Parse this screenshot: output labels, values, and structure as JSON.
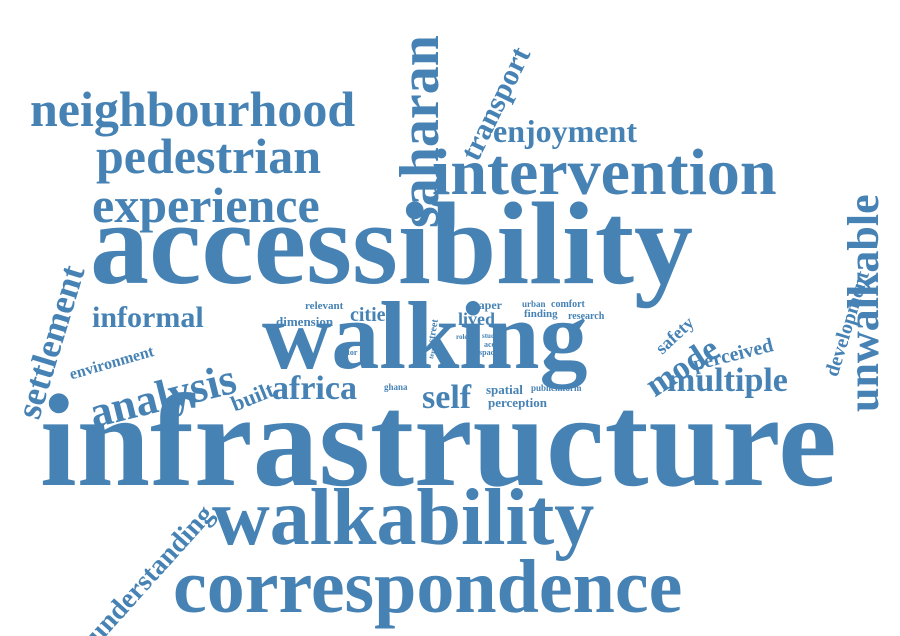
{
  "color": "#4682b4",
  "words": [
    {
      "text": "infrastructure"
    },
    {
      "text": "accessibility"
    },
    {
      "text": "walking"
    },
    {
      "text": "walkability"
    },
    {
      "text": "correspondence"
    },
    {
      "text": "intervention"
    },
    {
      "text": "neighbourhood"
    },
    {
      "text": "pedestrian"
    },
    {
      "text": "experience"
    },
    {
      "text": "saharan"
    },
    {
      "text": "unwalkable"
    },
    {
      "text": "transport"
    },
    {
      "text": "enjoyment"
    },
    {
      "text": "settlement"
    },
    {
      "text": "understanding"
    },
    {
      "text": "analysis"
    },
    {
      "text": "africa"
    },
    {
      "text": "multiple"
    },
    {
      "text": "mode"
    },
    {
      "text": "development"
    },
    {
      "text": "informal"
    },
    {
      "text": "self"
    },
    {
      "text": "built"
    },
    {
      "text": "environment"
    },
    {
      "text": "perceived"
    },
    {
      "text": "safety"
    },
    {
      "text": "cities"
    },
    {
      "text": "lived"
    },
    {
      "text": "dimension"
    },
    {
      "text": "relevant"
    },
    {
      "text": "paper"
    },
    {
      "text": "comfort"
    },
    {
      "text": "urban"
    },
    {
      "text": "finding"
    },
    {
      "text": "research"
    },
    {
      "text": "street"
    },
    {
      "text": "spatial"
    },
    {
      "text": "perception"
    },
    {
      "text": "publicinform"
    },
    {
      "text": "ghana"
    },
    {
      "text": "factor"
    },
    {
      "text": "term"
    },
    {
      "text": "role"
    },
    {
      "text": "study"
    },
    {
      "text": "acc"
    },
    {
      "text": "space"
    }
  ]
}
